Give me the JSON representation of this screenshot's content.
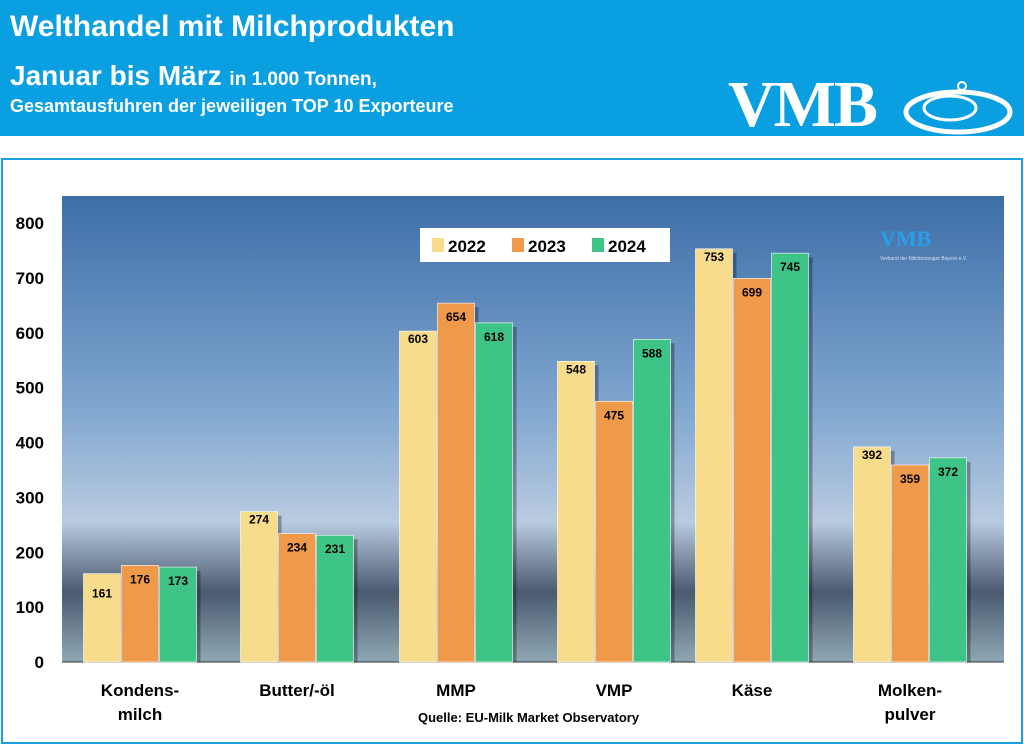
{
  "header": {
    "title": "Welthandel mit Milchprodukten",
    "subtitle_main": "Januar bis März",
    "subtitle_unit": "in 1.000 Tonnen,",
    "subtitle2": "Gesamtausfuhren der jeweiligen TOP 10 Exporteure",
    "logo": "VMB"
  },
  "watermark": {
    "logo": "VMB",
    "text": "Verband der Milcherzeuger Bayern e.V."
  },
  "source": "Quelle: EU-Milk Market Observatory",
  "colors": {
    "header": "#0a9fe0",
    "2022": "#f7dc8c",
    "2023": "#ef9a4a",
    "2024": "#3fc487"
  },
  "chart_data": {
    "type": "bar",
    "categories": [
      [
        "Kondens-",
        "milch"
      ],
      [
        "Butter/-öl"
      ],
      [
        "MMP"
      ],
      [
        "VMP"
      ],
      [
        "Käse"
      ],
      [
        "Molken-",
        "pulver"
      ]
    ],
    "series": [
      {
        "name": "2022",
        "values": [
          161,
          274,
          603,
          548,
          753,
          392
        ]
      },
      {
        "name": "2023",
        "values": [
          176,
          234,
          654,
          475,
          699,
          359
        ]
      },
      {
        "name": "2024",
        "values": [
          173,
          231,
          618,
          588,
          745,
          372
        ]
      }
    ],
    "ylim": [
      0,
      800
    ],
    "yticks": [
      0,
      100,
      200,
      300,
      400,
      500,
      600,
      700,
      800
    ],
    "legend": "top-center",
    "grid": false
  }
}
